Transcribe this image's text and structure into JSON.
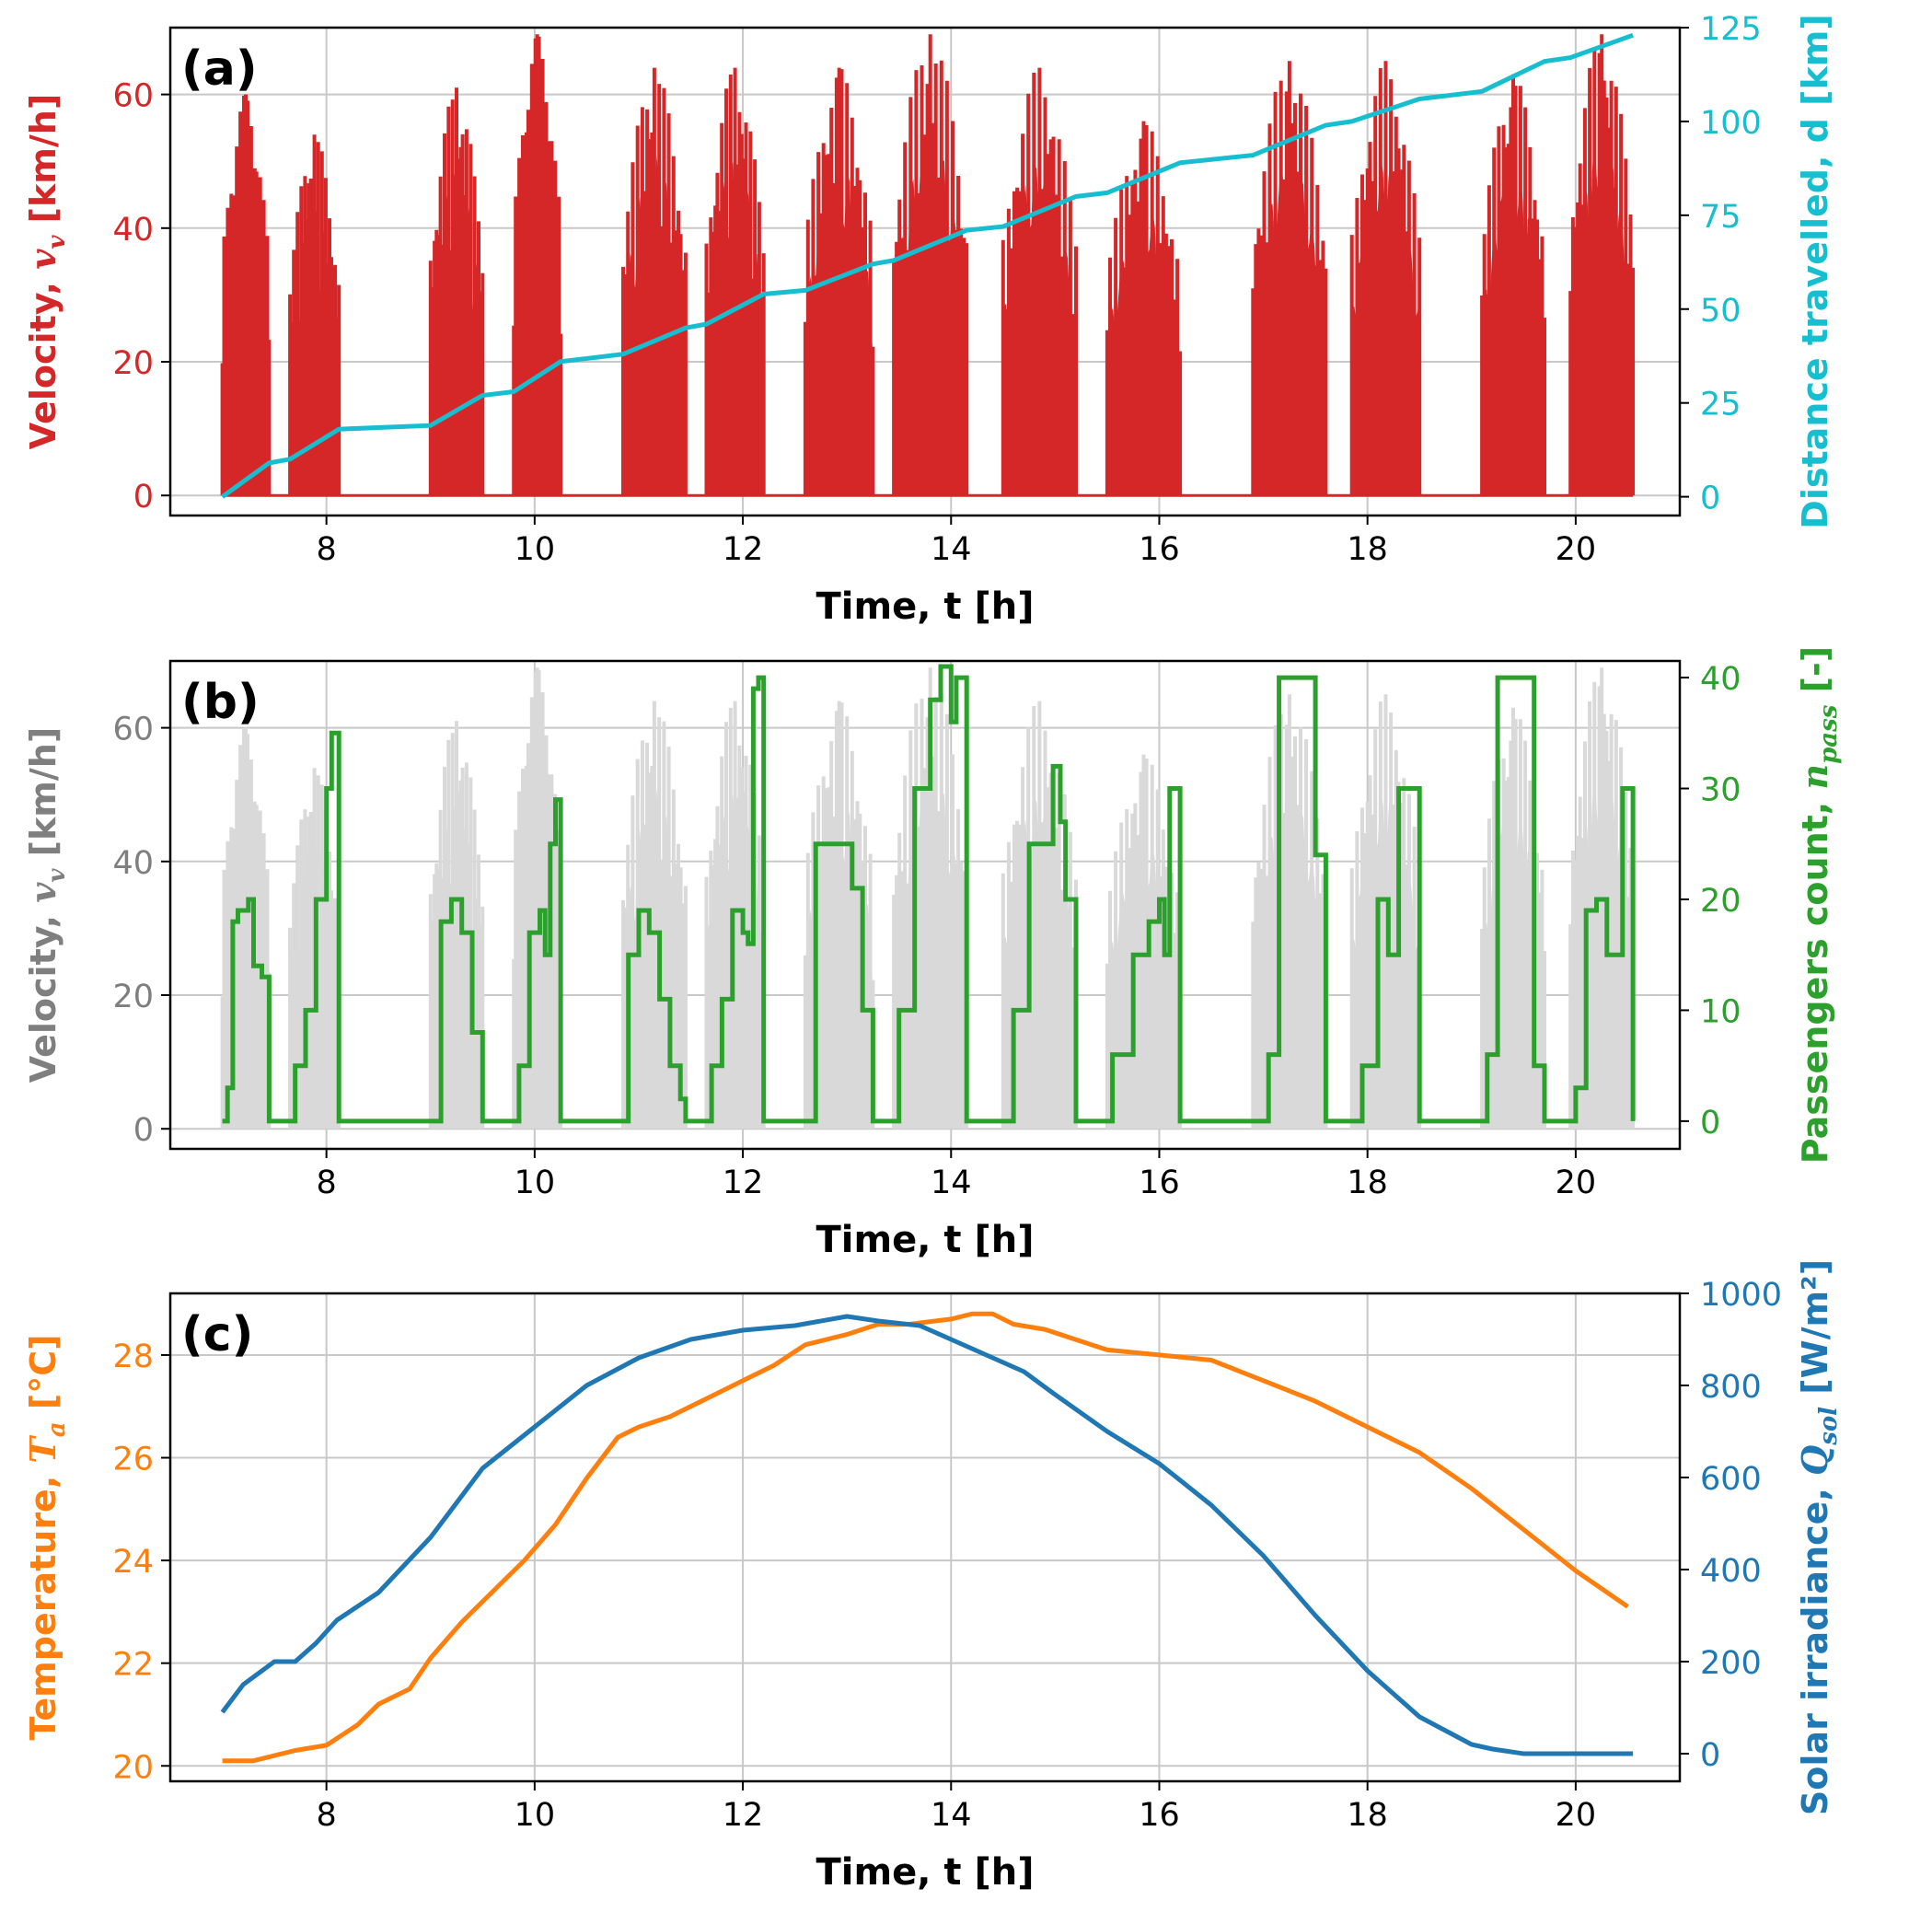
{
  "chart_data": [
    {
      "type": "line",
      "panel_label": "(a)",
      "xlabel": "Time, t [h]",
      "ylabel": "Velocity, v_v [km/h]",
      "ylabel_right": "Distance travelled, d [km]",
      "xlim": [
        6.5,
        21
      ],
      "ylim": [
        -3,
        70
      ],
      "ylim_right": [
        -5,
        125
      ],
      "xticks": [
        8,
        10,
        12,
        14,
        16,
        18,
        20
      ],
      "yticks": [
        0,
        20,
        40,
        60
      ],
      "yticks_right": [
        0,
        25,
        50,
        75,
        100,
        125
      ],
      "grid": true,
      "colors": {
        "velocity": "#d62728",
        "distance": "#17becf"
      },
      "velocity_trips": [
        {
          "start": 7.0,
          "end": 7.45,
          "peak": 60
        },
        {
          "start": 7.65,
          "end": 8.12,
          "peak": 54
        },
        {
          "start": 9.0,
          "end": 9.5,
          "peak": 61
        },
        {
          "start": 9.8,
          "end": 10.25,
          "peak": 69
        },
        {
          "start": 10.85,
          "end": 11.45,
          "peak": 64
        },
        {
          "start": 11.65,
          "end": 12.2,
          "peak": 64
        },
        {
          "start": 12.6,
          "end": 13.25,
          "peak": 64
        },
        {
          "start": 13.45,
          "end": 14.15,
          "peak": 69
        },
        {
          "start": 14.5,
          "end": 15.2,
          "peak": 64
        },
        {
          "start": 15.5,
          "end": 16.2,
          "peak": 56
        },
        {
          "start": 16.9,
          "end": 17.6,
          "peak": 65
        },
        {
          "start": 17.85,
          "end": 18.5,
          "peak": 65
        },
        {
          "start": 19.1,
          "end": 19.7,
          "peak": 63
        },
        {
          "start": 19.95,
          "end": 20.55,
          "peak": 69
        }
      ],
      "distance": {
        "x": [
          7.0,
          7.45,
          7.65,
          8.12,
          9.0,
          9.5,
          9.8,
          10.25,
          10.85,
          11.45,
          11.65,
          12.2,
          12.6,
          13.25,
          13.45,
          14.15,
          14.5,
          15.2,
          15.5,
          16.2,
          16.9,
          17.6,
          17.85,
          18.5,
          19.1,
          19.7,
          19.95,
          20.55
        ],
        "y": [
          0,
          9,
          10,
          18,
          19,
          27,
          28,
          36,
          38,
          45,
          46,
          54,
          55,
          62,
          63,
          71,
          72,
          80,
          81,
          89,
          91,
          99,
          100,
          106,
          108,
          116,
          117,
          123
        ]
      }
    },
    {
      "type": "line",
      "panel_label": "(b)",
      "xlabel": "Time, t [h]",
      "ylabel": "Velocity, v_v [km/h]",
      "ylabel_right": "Passengers count, n_pass [-]",
      "xlim": [
        6.5,
        21
      ],
      "ylim": [
        -3,
        70
      ],
      "ylim_right": [
        -2.5,
        41.5
      ],
      "xticks": [
        8,
        10,
        12,
        14,
        16,
        18,
        20
      ],
      "yticks": [
        0,
        20,
        40,
        60
      ],
      "yticks_right": [
        0,
        10,
        20,
        30,
        40
      ],
      "grid": true,
      "colors": {
        "velocity": "#d9d9d9",
        "passengers": "#2ca02c"
      },
      "passengers": {
        "x": [
          7.0,
          7.05,
          7.1,
          7.15,
          7.25,
          7.3,
          7.38,
          7.45,
          7.65,
          7.7,
          7.8,
          7.9,
          8.0,
          8.05,
          8.12,
          9.0,
          9.1,
          9.2,
          9.3,
          9.4,
          9.5,
          9.8,
          9.85,
          9.95,
          10.05,
          10.1,
          10.15,
          10.2,
          10.25,
          10.85,
          10.9,
          11.0,
          11.1,
          11.2,
          11.3,
          11.4,
          11.45,
          11.65,
          11.7,
          11.8,
          11.9,
          12.0,
          12.05,
          12.1,
          12.15,
          12.2,
          12.6,
          12.7,
          12.9,
          13.05,
          13.15,
          13.25,
          13.45,
          13.5,
          13.65,
          13.8,
          13.9,
          14.0,
          14.05,
          14.15,
          14.5,
          14.6,
          14.75,
          14.9,
          14.98,
          15.05,
          15.1,
          15.2,
          15.5,
          15.55,
          15.75,
          15.9,
          16.0,
          16.05,
          16.1,
          16.2,
          16.9,
          17.05,
          17.15,
          17.4,
          17.5,
          17.6,
          17.85,
          17.95,
          18.1,
          18.2,
          18.3,
          18.38,
          18.45,
          18.5,
          19.1,
          19.15,
          19.25,
          19.45,
          19.6,
          19.7,
          19.95,
          20.0,
          20.1,
          20.2,
          20.3,
          20.38,
          20.45,
          20.55
        ],
        "y": [
          0,
          3,
          18,
          19,
          20,
          14,
          13,
          0,
          0,
          5,
          10,
          20,
          30,
          35,
          0,
          0,
          18,
          20,
          17,
          8,
          0,
          0,
          5,
          17,
          19,
          15,
          25,
          29,
          0,
          0,
          15,
          19,
          17,
          11,
          5,
          2,
          0,
          0,
          5,
          11,
          19,
          17,
          16,
          39,
          40,
          0,
          0,
          25,
          25,
          21,
          10,
          0,
          0,
          10,
          30,
          38,
          41,
          36,
          40,
          0,
          0,
          10,
          25,
          25,
          32,
          27,
          20,
          0,
          0,
          6,
          15,
          18,
          20,
          15,
          30,
          0,
          0,
          6,
          40,
          40,
          24,
          0,
          0,
          5,
          20,
          15,
          30,
          30,
          30,
          0,
          0,
          6,
          40,
          40,
          5,
          0,
          0,
          3,
          19,
          20,
          15,
          15,
          30,
          0
        ]
      }
    },
    {
      "type": "line",
      "panel_label": "(c)",
      "xlabel": "Time, t [h]",
      "ylabel": "Temperature, T_a [°C]",
      "ylabel_right": "Solar irradiance, Q_sol [W/m²]",
      "xlim": [
        6.5,
        21
      ],
      "ylim": [
        19.7,
        29.2
      ],
      "ylim_right": [
        -60,
        1000
      ],
      "xticks": [
        8,
        10,
        12,
        14,
        16,
        18,
        20
      ],
      "yticks": [
        20,
        22,
        24,
        26,
        28
      ],
      "yticks_right": [
        0,
        200,
        400,
        600,
        800,
        1000
      ],
      "grid": true,
      "colors": {
        "temperature": "#ff7f0e",
        "irradiance": "#1f77b4"
      },
      "temperature": {
        "x": [
          7.0,
          7.3,
          7.5,
          7.7,
          8.0,
          8.3,
          8.5,
          8.8,
          9.0,
          9.3,
          9.6,
          9.9,
          10.2,
          10.5,
          10.8,
          11.0,
          11.3,
          11.5,
          11.7,
          12.0,
          12.3,
          12.6,
          13.0,
          13.3,
          13.6,
          14.0,
          14.2,
          14.4,
          14.6,
          14.9,
          15.2,
          15.5,
          16.0,
          16.5,
          17.0,
          17.5,
          18.0,
          18.5,
          19.0,
          19.5,
          20.0,
          20.5
        ],
        "y": [
          20.1,
          20.1,
          20.2,
          20.3,
          20.4,
          20.8,
          21.2,
          21.5,
          22.1,
          22.8,
          23.4,
          24.0,
          24.7,
          25.6,
          26.4,
          26.6,
          26.8,
          27.0,
          27.2,
          27.5,
          27.8,
          28.2,
          28.4,
          28.6,
          28.6,
          28.7,
          28.8,
          28.8,
          28.6,
          28.5,
          28.3,
          28.1,
          28.0,
          27.9,
          27.5,
          27.1,
          26.6,
          26.1,
          25.4,
          24.6,
          23.8,
          23.1
        ]
      },
      "irradiance": {
        "x": [
          7.0,
          7.2,
          7.5,
          7.7,
          7.9,
          8.1,
          8.5,
          9.0,
          9.5,
          10.0,
          10.5,
          11.0,
          11.5,
          12.0,
          12.5,
          13.0,
          13.3,
          13.7,
          14.0,
          14.3,
          14.7,
          15.0,
          15.5,
          16.0,
          16.5,
          17.0,
          17.5,
          18.0,
          18.5,
          19.0,
          19.2,
          19.5,
          20.0,
          20.55
        ],
        "y": [
          90,
          150,
          200,
          200,
          240,
          290,
          350,
          470,
          620,
          710,
          800,
          860,
          900,
          920,
          930,
          950,
          940,
          930,
          900,
          870,
          830,
          780,
          700,
          630,
          540,
          430,
          300,
          180,
          80,
          20,
          10,
          0,
          0,
          0
        ]
      }
    }
  ]
}
